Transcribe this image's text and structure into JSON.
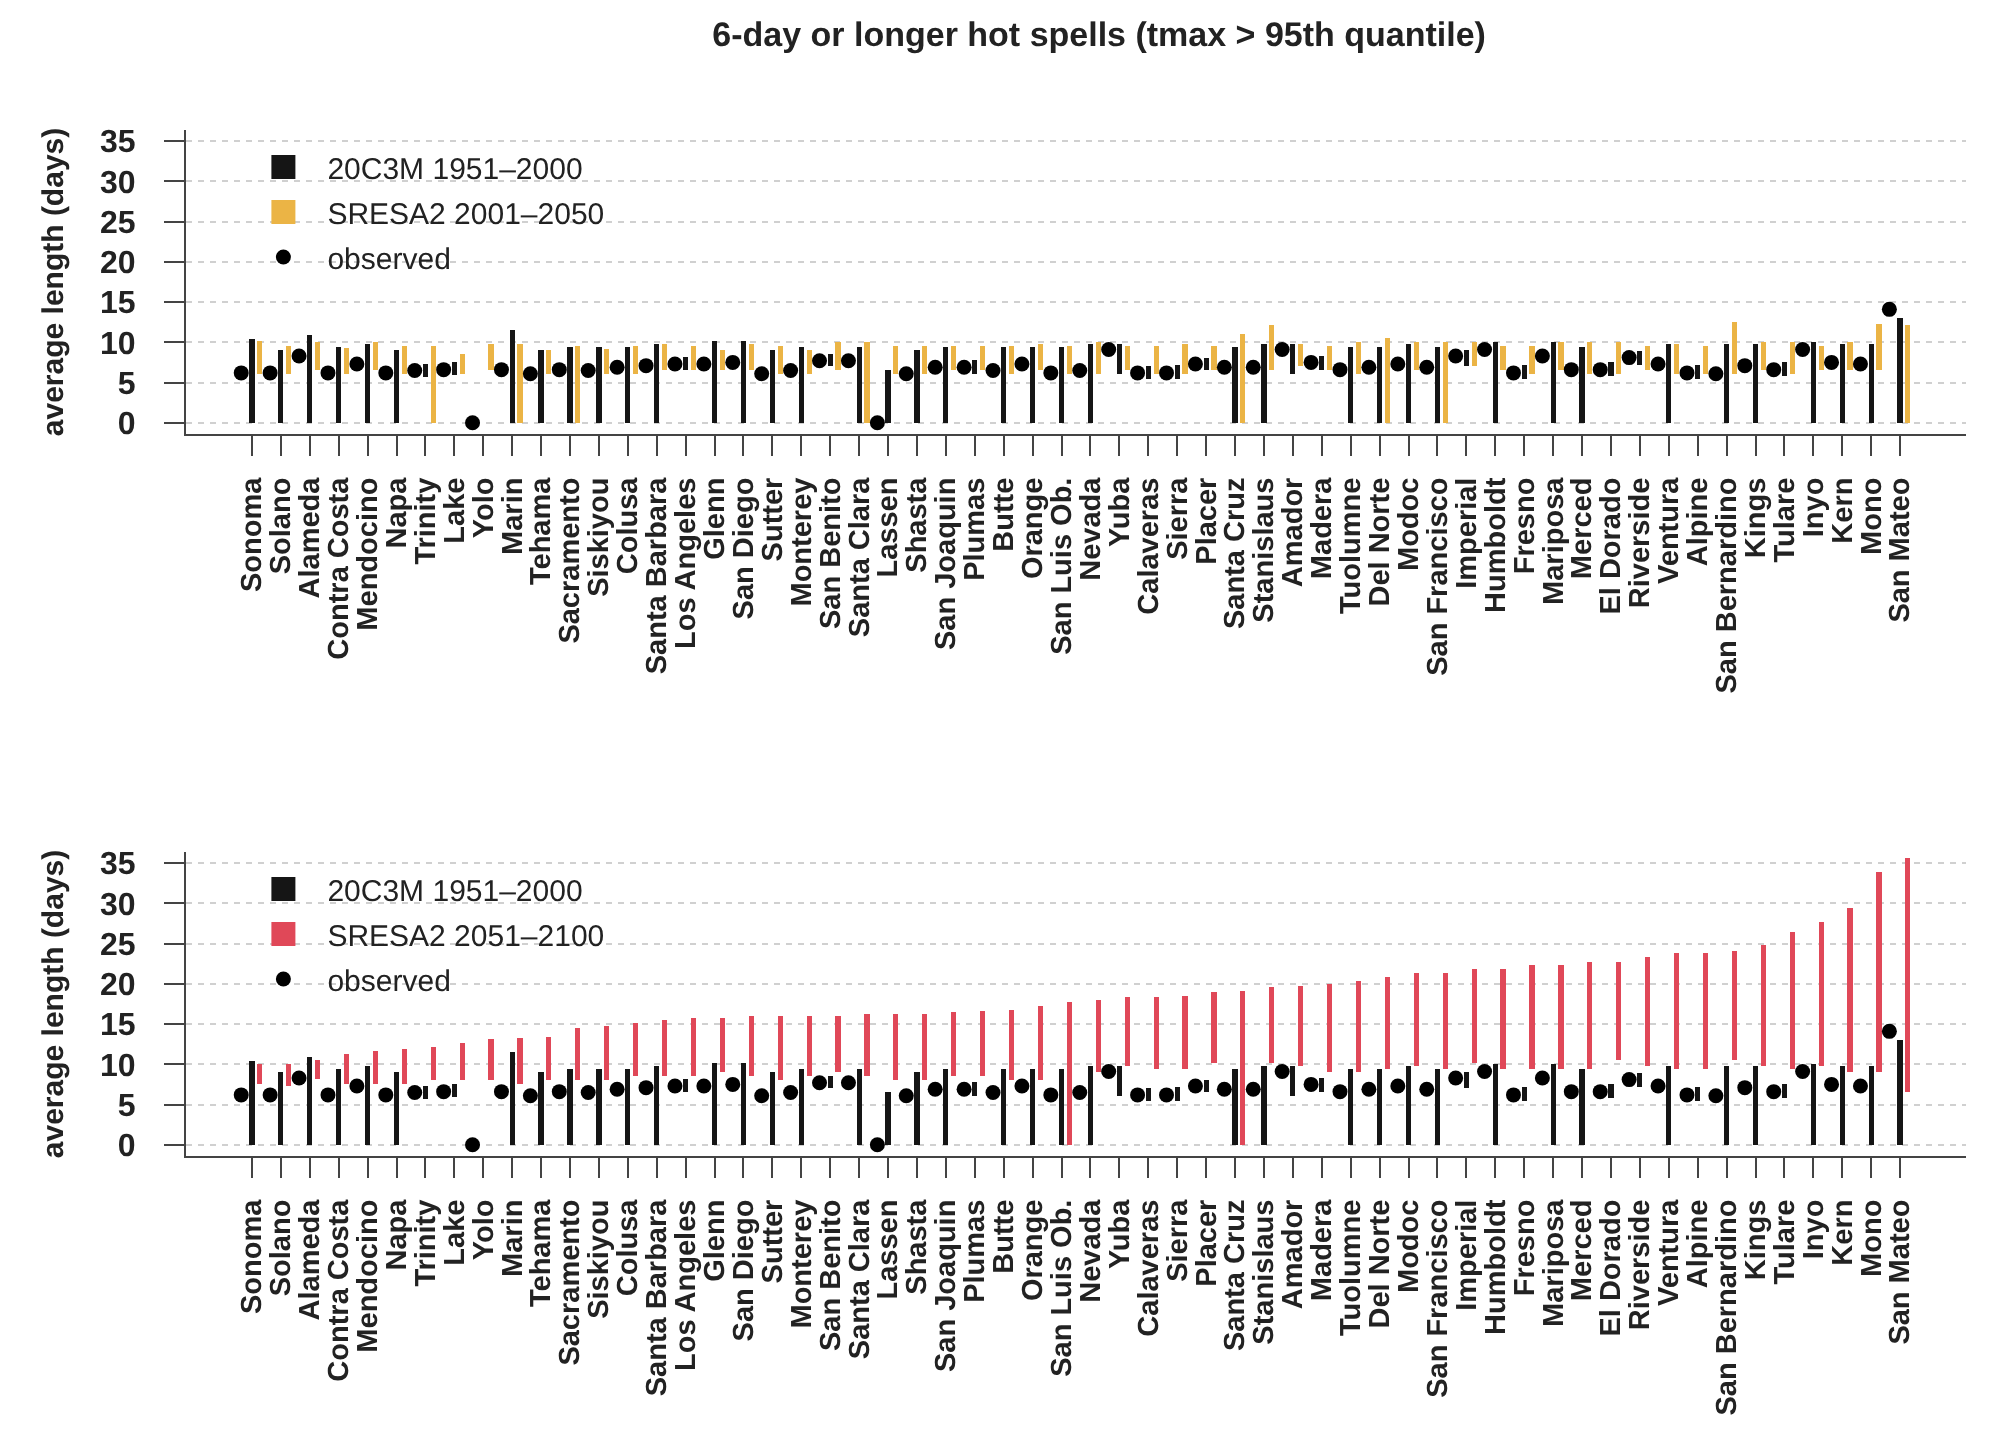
{
  "chart_data": [
    {
      "type": "bar",
      "title": "6-day or longer hot spells (tmax > 95th quantile)",
      "ylabel": "average length (days)",
      "legend": "top left",
      "grid": "y",
      "ylim": [
        -1.4,
        36.4
      ],
      "yticks": [
        0,
        5,
        10,
        15,
        20,
        25,
        30,
        35
      ],
      "categories": [
        "Sonoma",
        "Solano",
        "Alameda",
        "Contra Costa",
        "Mendocino",
        "Napa",
        "Trinity",
        "Lake",
        "Yolo",
        "Marin",
        "Tehama",
        "Sacramento",
        "Siskiyou",
        "Colusa",
        "Santa Barbara",
        "Los Angeles",
        "Glenn",
        "San Diego",
        "Sutter",
        "Monterey",
        "San Benito",
        "Santa Clara",
        "Lassen",
        "Shasta",
        "San Joaquin",
        "Plumas",
        "Butte",
        "Orange",
        "San Luis Ob.",
        "Nevada",
        "Yuba",
        "Calaveras",
        "Sierra",
        "Placer",
        "Santa Cruz",
        "Stanislaus",
        "Amador",
        "Madera",
        "Tuolumne",
        "Del Norte",
        "Modoc",
        "San Francisco",
        "Imperial",
        "Humboldt",
        "Fresno",
        "Mariposa",
        "Merced",
        "El Dorado",
        "Riverside",
        "Ventura",
        "Alpine",
        "San Bernardino",
        "Kings",
        "Tulare",
        "Inyo",
        "Kern",
        "Mono",
        "San Mateo"
      ],
      "series": [
        {
          "name": "20C3M 1951–2000",
          "color": "#151515",
          "base": [
            0,
            0,
            0,
            0,
            0,
            0,
            5.7,
            5.9,
            null,
            0,
            0,
            0,
            0,
            0,
            0,
            6.5,
            0,
            0,
            0,
            0,
            7.0,
            0,
            0,
            0,
            0,
            6.0,
            0,
            0,
            0,
            0,
            6.0,
            5.4,
            5.4,
            6.5,
            0,
            0,
            6.0,
            6.6,
            0,
            0,
            0,
            0,
            7.0,
            0,
            5.4,
            0,
            0,
            5.8,
            7.2,
            0,
            5.4,
            0,
            0,
            5.8,
            0,
            0,
            0,
            0
          ],
          "values": [
            10.4,
            9.0,
            10.9,
            9.4,
            9.8,
            9.0,
            1.6,
            1.7,
            null,
            11.5,
            9.0,
            9.4,
            9.4,
            9.4,
            9.8,
            1.7,
            10.2,
            10.2,
            9.0,
            9.4,
            1.5,
            9.4,
            6.5,
            9.0,
            9.4,
            1.8,
            9.4,
            9.4,
            9.4,
            9.8,
            3.8,
            1.6,
            1.8,
            1.6,
            9.4,
            9.8,
            3.8,
            1.7,
            9.4,
            9.4,
            9.8,
            9.4,
            2.0,
            10.0,
            1.8,
            10.0,
            9.4,
            1.7,
            1.7,
            9.8,
            1.8,
            9.8,
            9.8,
            1.7,
            10.0,
            9.8,
            9.8,
            13.0
          ]
        },
        {
          "name": "SRESA2 2001–2050",
          "color": "#ebb445",
          "base": [
            6.0,
            6.0,
            6.5,
            6.0,
            6.5,
            6.0,
            0,
            6.0,
            6.5,
            0,
            6.0,
            0,
            6.0,
            6.0,
            6.5,
            6.5,
            6.5,
            6.5,
            6.0,
            6.0,
            6.5,
            0,
            6.0,
            6.0,
            6.5,
            6.5,
            6.0,
            6.5,
            6.0,
            6.0,
            6.5,
            6.0,
            6.0,
            6.5,
            0,
            6.5,
            7.0,
            6.5,
            6.0,
            0,
            6.5,
            0,
            7.0,
            6.5,
            6.0,
            6.5,
            6.0,
            6.0,
            6.5,
            6.0,
            6.0,
            6.0,
            6.5,
            6.0,
            6.5,
            6.5,
            6.5,
            0
          ],
          "values": [
            4.2,
            3.5,
            3.5,
            3.3,
            3.5,
            3.5,
            9.5,
            2.5,
            3.3,
            9.8,
            3.0,
            9.5,
            3.2,
            3.5,
            3.3,
            3.0,
            2.5,
            3.3,
            3.5,
            3.0,
            3.5,
            10.0,
            3.5,
            3.5,
            3.0,
            3.0,
            3.5,
            3.3,
            3.5,
            4.0,
            3.0,
            3.5,
            3.8,
            3.0,
            11.0,
            5.7,
            2.8,
            3.0,
            4.0,
            10.5,
            3.5,
            10.0,
            3.0,
            3.0,
            3.5,
            3.5,
            4.0,
            4.0,
            3.0,
            3.8,
            3.5,
            6.5,
            3.5,
            4.0,
            3.0,
            3.5,
            5.8,
            12.2
          ]
        },
        {
          "name": "observed",
          "color": "#000000",
          "type": "scatter",
          "marker": "circle",
          "values": [
            6.2,
            6.2,
            8.3,
            6.2,
            7.3,
            6.2,
            6.5,
            6.6,
            0,
            6.6,
            6.1,
            6.6,
            6.5,
            6.9,
            7.1,
            7.3,
            7.3,
            7.5,
            6.1,
            6.5,
            7.7,
            7.7,
            0,
            6.1,
            6.9,
            6.9,
            6.5,
            7.3,
            6.2,
            6.5,
            9.1,
            6.2,
            6.2,
            7.3,
            6.9,
            6.9,
            9.1,
            7.5,
            6.6,
            6.9,
            7.3,
            6.9,
            8.3,
            9.1,
            6.2,
            8.3,
            6.6,
            6.6,
            8.1,
            7.3,
            6.2,
            6.1,
            7.1,
            6.6,
            9.1,
            7.5,
            7.3,
            14.1
          ]
        }
      ]
    },
    {
      "type": "bar",
      "ylabel": "average length (days)",
      "legend": "top left",
      "grid": "y",
      "ylim": [
        -1.4,
        36.4
      ],
      "yticks": [
        0,
        5,
        10,
        15,
        20,
        25,
        30,
        35
      ],
      "categories": [
        "Sonoma",
        "Solano",
        "Alameda",
        "Contra Costa",
        "Mendocino",
        "Napa",
        "Trinity",
        "Lake",
        "Yolo",
        "Marin",
        "Tehama",
        "Sacramento",
        "Siskiyou",
        "Colusa",
        "Santa Barbara",
        "Los Angeles",
        "Glenn",
        "San Diego",
        "Sutter",
        "Monterey",
        "San Benito",
        "Santa Clara",
        "Lassen",
        "Shasta",
        "San Joaquin",
        "Plumas",
        "Butte",
        "Orange",
        "San Luis Ob.",
        "Nevada",
        "Yuba",
        "Calaveras",
        "Sierra",
        "Placer",
        "Santa Cruz",
        "Stanislaus",
        "Amador",
        "Madera",
        "Tuolumne",
        "Del Norte",
        "Modoc",
        "San Francisco",
        "Imperial",
        "Humboldt",
        "Fresno",
        "Mariposa",
        "Merced",
        "El Dorado",
        "Riverside",
        "Ventura",
        "Alpine",
        "San Bernardino",
        "Kings",
        "Tulare",
        "Inyo",
        "Kern",
        "Mono",
        "San Mateo"
      ],
      "series": [
        {
          "name": "20C3M 1951–2000",
          "color": "#151515",
          "base": [
            0,
            0,
            0,
            0,
            0,
            0,
            5.7,
            5.9,
            null,
            0,
            0,
            0,
            0,
            0,
            0,
            6.5,
            0,
            0,
            0,
            0,
            7.0,
            0,
            0,
            0,
            0,
            6.0,
            0,
            0,
            0,
            0,
            6.0,
            5.4,
            5.4,
            6.5,
            0,
            0,
            6.0,
            6.6,
            0,
            0,
            0,
            0,
            7.0,
            0,
            5.4,
            0,
            0,
            5.8,
            7.2,
            0,
            5.4,
            0,
            0,
            5.8,
            0,
            0,
            0,
            0
          ],
          "values": [
            10.4,
            9.0,
            10.9,
            9.4,
            9.8,
            9.0,
            1.6,
            1.7,
            null,
            11.5,
            9.0,
            9.4,
            9.4,
            9.4,
            9.8,
            1.7,
            10.2,
            10.2,
            9.0,
            9.4,
            1.5,
            9.4,
            6.5,
            9.0,
            9.4,
            1.8,
            9.4,
            9.4,
            9.4,
            9.8,
            3.8,
            1.6,
            1.8,
            1.6,
            9.4,
            9.8,
            3.8,
            1.7,
            9.4,
            9.4,
            9.8,
            9.4,
            2.0,
            10.0,
            1.8,
            10.0,
            9.4,
            1.7,
            1.7,
            9.8,
            1.8,
            9.8,
            9.8,
            1.7,
            10.0,
            9.8,
            9.8,
            13.0
          ]
        },
        {
          "name": "SRESA2 2051–2100",
          "color": "#e04858",
          "base": [
            7.5,
            7.3,
            8.2,
            7.5,
            7.5,
            7.5,
            8.0,
            8.0,
            8.0,
            7.5,
            8.0,
            8.0,
            8.0,
            8.5,
            8.5,
            8.5,
            9.0,
            8.5,
            8.0,
            8.5,
            9.0,
            8.5,
            8.0,
            8.0,
            8.5,
            8.5,
            8.0,
            8.0,
            0,
            9.0,
            9.8,
            9.4,
            9.4,
            10.2,
            0,
            10.2,
            9.8,
            9.0,
            9.0,
            9.4,
            9.8,
            9.4,
            10.2,
            9.4,
            9.4,
            9.4,
            9.4,
            10.6,
            9.8,
            9.4,
            9.4,
            10.6,
            9.8,
            9.4,
            9.8,
            9.0,
            9.0,
            6.6
          ],
          "values": [
            2.5,
            2.8,
            2.4,
            3.8,
            4.1,
            4.4,
            4.1,
            4.7,
            5.1,
            5.8,
            5.4,
            6.5,
            6.8,
            6.7,
            7.0,
            7.3,
            6.8,
            7.5,
            8.0,
            7.5,
            7.0,
            7.7,
            8.2,
            8.3,
            8.0,
            8.1,
            8.7,
            9.2,
            17.7,
            9.0,
            8.6,
            9.0,
            9.1,
            8.8,
            19.1,
            9.4,
            10.0,
            11.0,
            11.4,
            11.4,
            11.5,
            12.0,
            11.7,
            12.5,
            12.9,
            12.9,
            13.3,
            12.1,
            13.5,
            14.4,
            14.4,
            13.5,
            15.0,
            17.0,
            17.9,
            20.5,
            24.9,
            29.0
          ]
        },
        {
          "name": "observed",
          "color": "#000000",
          "type": "scatter",
          "marker": "circle",
          "values": [
            6.2,
            6.2,
            8.3,
            6.2,
            7.3,
            6.2,
            6.5,
            6.6,
            0,
            6.6,
            6.1,
            6.6,
            6.5,
            6.9,
            7.1,
            7.3,
            7.3,
            7.5,
            6.1,
            6.5,
            7.7,
            7.7,
            0,
            6.1,
            6.9,
            6.9,
            6.5,
            7.3,
            6.2,
            6.5,
            9.1,
            6.2,
            6.2,
            7.3,
            6.9,
            6.9,
            9.1,
            7.5,
            6.6,
            6.9,
            7.3,
            6.9,
            8.3,
            9.1,
            6.2,
            8.3,
            6.6,
            6.6,
            8.1,
            7.3,
            6.2,
            6.1,
            7.1,
            6.6,
            9.1,
            7.5,
            7.3,
            14.1
          ]
        }
      ]
    }
  ]
}
